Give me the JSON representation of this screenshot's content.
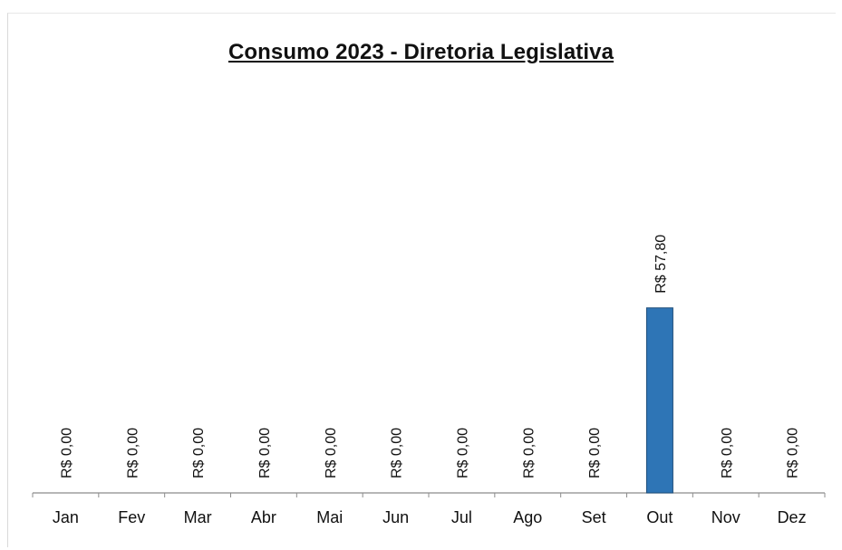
{
  "chart_data": {
    "type": "bar",
    "title": "Consumo 2023 - Diretoria Legislativa",
    "categories": [
      "Jan",
      "Fev",
      "Mar",
      "Abr",
      "Mai",
      "Jun",
      "Jul",
      "Ago",
      "Set",
      "Out",
      "Nov",
      "Dez"
    ],
    "values": [
      0,
      0,
      0,
      0,
      0,
      0,
      0,
      0,
      0,
      57.8,
      0,
      0
    ],
    "data_labels": [
      "R$ 0,00",
      "R$ 0,00",
      "R$ 0,00",
      "R$ 0,00",
      "R$ 0,00",
      "R$ 0,00",
      "R$ 0,00",
      "R$ 0,00",
      "R$ 0,00",
      "R$ 57,80",
      "R$ 0,00",
      "R$ 0,00"
    ],
    "xlabel": "",
    "ylabel": "",
    "ylim": [
      0,
      120
    ],
    "grid": false,
    "legend": "none",
    "bar_color": "#2e75b6",
    "bar_edge_color": "#1f4e79"
  }
}
